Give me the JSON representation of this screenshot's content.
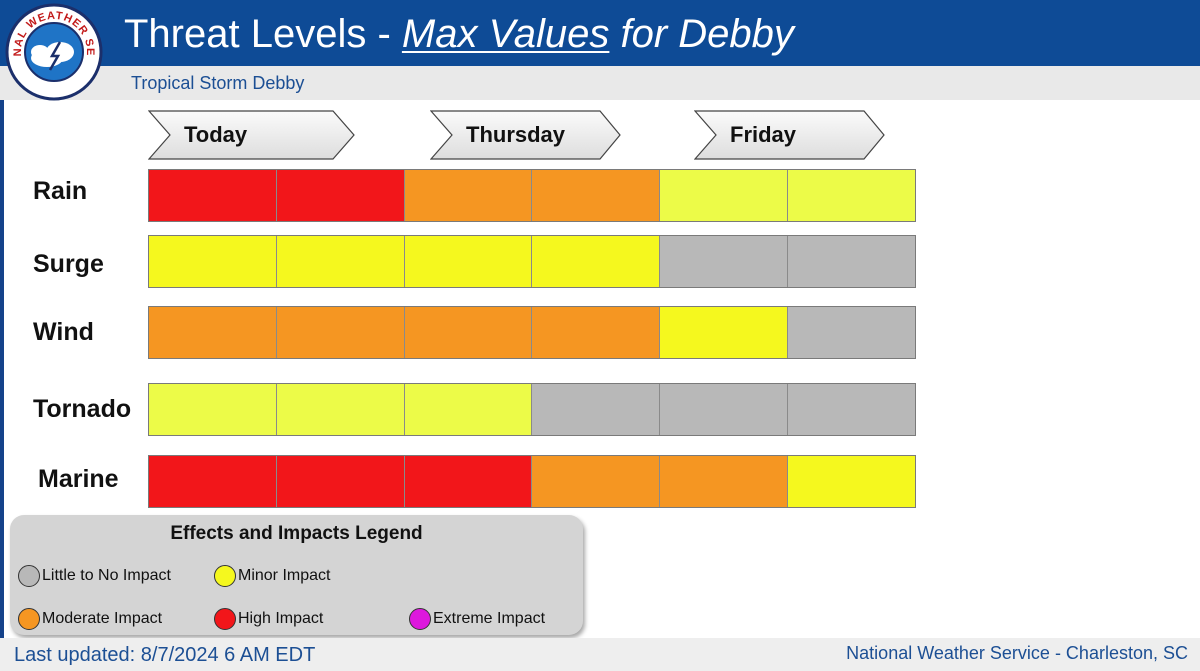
{
  "header": {
    "title_prefix": "Threat Levels - ",
    "title_underlined": "Max Values",
    "title_suffix": " for Debby",
    "subtitle": "Tropical Storm Debby"
  },
  "logo": {
    "ring_text": "NATIONAL WEATHER SERVICE",
    "colors": {
      "ring": "#ffffff",
      "sky": "#1f74c6",
      "cloud": "#ffffff",
      "border": "#1b2f6b"
    }
  },
  "days": [
    {
      "label": "Today"
    },
    {
      "label": "Thursday"
    },
    {
      "label": "Friday"
    }
  ],
  "levels": {
    "none": "#b8b8b8",
    "minor_light": "#ecfb48",
    "minor": "#f5f81e",
    "moderate": "#f59622",
    "high": "#f2161a"
  },
  "rows": [
    {
      "label": "Rain",
      "cells": [
        "high",
        "high",
        "moderate",
        "moderate",
        "minor_light",
        "minor_light"
      ]
    },
    {
      "label": "Surge",
      "cells": [
        "minor",
        "minor",
        "minor",
        "minor",
        "none",
        "none"
      ]
    },
    {
      "label": "Wind",
      "cells": [
        "moderate",
        "moderate",
        "moderate",
        "moderate",
        "minor",
        "none"
      ]
    },
    {
      "label": "Tornado",
      "cells": [
        "minor_light",
        "minor_light",
        "minor_light",
        "none",
        "none",
        "none"
      ]
    },
    {
      "label": "Marine",
      "cells": [
        "high",
        "high",
        "high",
        "moderate",
        "moderate",
        "minor"
      ]
    }
  ],
  "legend": {
    "title": "Effects and Impacts Legend",
    "items": [
      {
        "label": "Little to No Impact",
        "color": "#b8b8b8"
      },
      {
        "label": "Minor Impact",
        "color": "#f5f81e"
      },
      {
        "label": "Moderate Impact",
        "color": "#f59622"
      },
      {
        "label": "High Impact",
        "color": "#f2161a"
      },
      {
        "label": "Extreme Impact",
        "color": "#dd18dd"
      }
    ]
  },
  "footer": {
    "last_updated": "Last updated: 8/7/2024 6 AM EDT",
    "office": "National Weather Service - Charleston, SC"
  }
}
